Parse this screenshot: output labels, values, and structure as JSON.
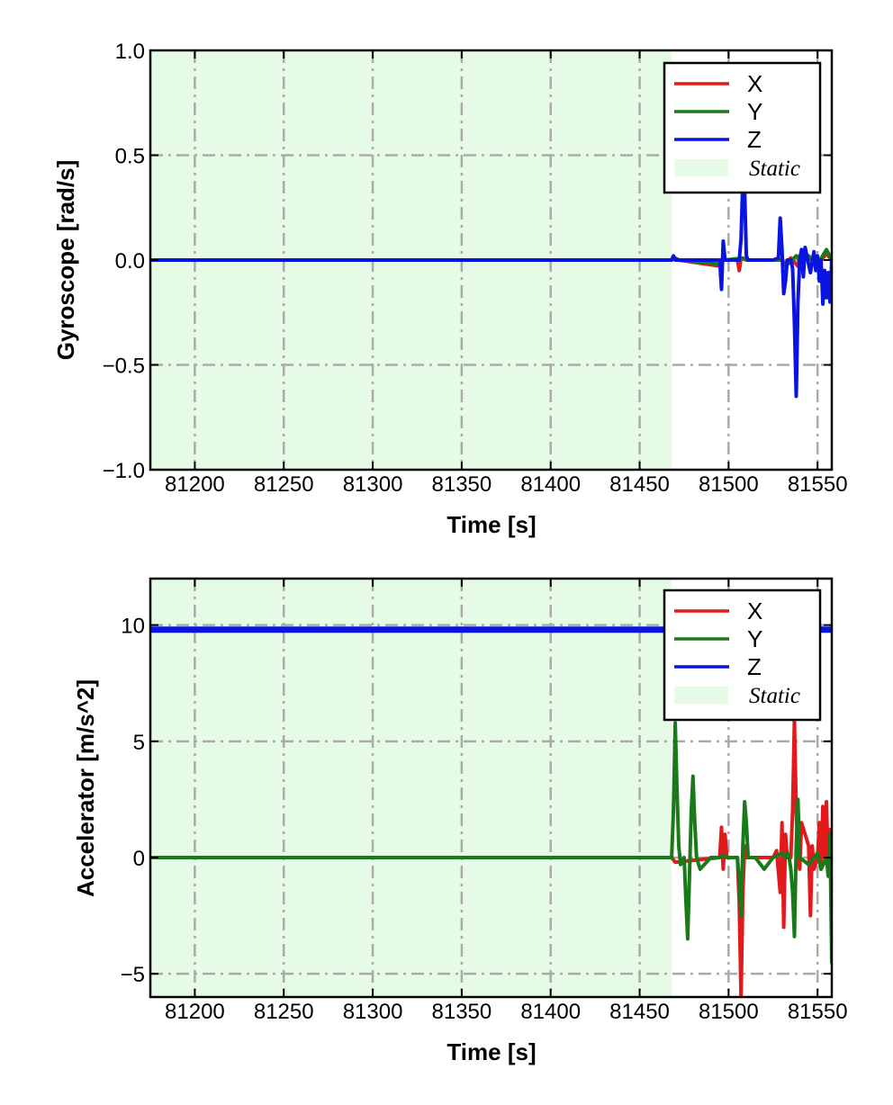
{
  "chart_data": [
    {
      "type": "line",
      "xlabel": "Time [s]",
      "ylabel": "Gyroscope [rad/s]",
      "xlim": [
        81175,
        81558
      ],
      "ylim": [
        -1.0,
        1.0
      ],
      "xticks": [
        81200,
        81250,
        81300,
        81350,
        81400,
        81450,
        81500,
        81550
      ],
      "xtick_labels": [
        "81200",
        "81250",
        "81300",
        "81350",
        "81400",
        "81450",
        "81500",
        "81550"
      ],
      "yticks": [
        1.0,
        0.5,
        0.0,
        -0.5,
        -1.0
      ],
      "ytick_labels": [
        "1.0",
        "0.5",
        "0.0",
        "−0.5",
        "−1.0"
      ],
      "grid": true,
      "legend_position": "top-right",
      "static_region": {
        "label": "Static",
        "x": [
          81175,
          81468
        ],
        "color": "#e6fbe6"
      },
      "series": [
        {
          "name": "X",
          "color": "#e31a1c",
          "x": [
            81175,
            81468,
            81470,
            81472,
            81496,
            81497,
            81498,
            81505,
            81506,
            81507,
            81510,
            81530,
            81531,
            81535,
            81539,
            81540,
            81545,
            81550,
            81555,
            81558
          ],
          "y": [
            0.0,
            0.0,
            0.01,
            0.0,
            -0.03,
            0.02,
            0.0,
            0.0,
            -0.05,
            0.01,
            0.0,
            0.0,
            -0.02,
            0.01,
            -0.03,
            0.02,
            0.01,
            -0.02,
            0.03,
            0.0
          ]
        },
        {
          "name": "Y",
          "color": "#1a7a1a",
          "x": [
            81175,
            81468,
            81470,
            81472,
            81496,
            81497,
            81498,
            81508,
            81510,
            81530,
            81532,
            81538,
            81540,
            81545,
            81550,
            81555,
            81558
          ],
          "y": [
            0.0,
            0.0,
            0.01,
            0.0,
            -0.02,
            0.02,
            0.0,
            0.01,
            0.0,
            0.0,
            -0.03,
            0.02,
            0.0,
            0.02,
            -0.02,
            0.05,
            0.0
          ]
        },
        {
          "name": "Z",
          "color": "#0a14e0",
          "x": [
            81175,
            81468,
            81469,
            81470,
            81471,
            81495,
            81496,
            81497,
            81498,
            81499,
            81506,
            81507,
            81508,
            81509,
            81510,
            81511,
            81512,
            81525,
            81528,
            81529,
            81530,
            81531,
            81532,
            81533,
            81535,
            81536,
            81537,
            81538,
            81539,
            81540,
            81541,
            81542,
            81543,
            81544,
            81546,
            81548,
            81549,
            81550,
            81551,
            81552,
            81553,
            81554,
            81555,
            81556,
            81557,
            81558
          ],
          "y": [
            0.0,
            0.0,
            0.02,
            0.0,
            0.0,
            0.0,
            -0.14,
            0.09,
            0.0,
            0.0,
            0.0,
            0.1,
            0.38,
            0.33,
            0.02,
            0.0,
            0.0,
            0.0,
            0.01,
            0.2,
            0.05,
            -0.16,
            -0.1,
            0.0,
            0.0,
            -0.04,
            -0.3,
            -0.65,
            -0.2,
            0.0,
            0.05,
            -0.08,
            0.06,
            0.02,
            -0.06,
            0.04,
            -0.05,
            0.02,
            -0.1,
            0.0,
            -0.21,
            -0.05,
            -0.18,
            -0.06,
            -0.2,
            0.0
          ]
        }
      ]
    },
    {
      "type": "line",
      "xlabel": "Time [s]",
      "ylabel": "Accelerator [m/s^2]",
      "xlim": [
        81175,
        81558
      ],
      "ylim": [
        -6,
        12
      ],
      "xticks": [
        81200,
        81250,
        81300,
        81350,
        81400,
        81450,
        81500,
        81550
      ],
      "xtick_labels": [
        "81200",
        "81250",
        "81300",
        "81350",
        "81400",
        "81450",
        "81500",
        "81550"
      ],
      "yticks": [
        10,
        5,
        0,
        -5
      ],
      "ytick_labels": [
        "10",
        "5",
        "0",
        "−5"
      ],
      "grid": true,
      "legend_position": "top-right",
      "static_region": {
        "label": "Static",
        "x": [
          81175,
          81468
        ],
        "color": "#e6fbe6"
      },
      "series": [
        {
          "name": "X",
          "color": "#e31a1c",
          "x": [
            81175,
            81468,
            81470,
            81495,
            81496,
            81497,
            81498,
            81499,
            81505,
            81506,
            81507,
            81508,
            81509,
            81510,
            81512,
            81525,
            81527,
            81529,
            81530,
            81531,
            81532,
            81533,
            81535,
            81536,
            81537,
            81538,
            81539,
            81540,
            81541,
            81545,
            81546,
            81547,
            81548,
            81550,
            81551,
            81552,
            81553,
            81554,
            81555,
            81556,
            81557,
            81558
          ],
          "y": [
            0.0,
            0.0,
            -0.2,
            0.0,
            1.3,
            -0.5,
            1.0,
            0.0,
            0.0,
            -2.0,
            -6.0,
            -1.5,
            0.5,
            0.0,
            0.0,
            0.0,
            0.3,
            -1.5,
            1.5,
            -3.0,
            1.0,
            0.0,
            0.0,
            2.0,
            5.9,
            2.0,
            0.0,
            -0.5,
            1.5,
            0.5,
            -2.5,
            0.5,
            -0.5,
            0.0,
            1.5,
            -0.5,
            2.2,
            0.0,
            2.4,
            -0.5,
            1.2,
            0.0
          ]
        },
        {
          "name": "Y",
          "color": "#1a7a1a",
          "x": [
            81175,
            81468,
            81469,
            81470,
            81471,
            81472,
            81473,
            81475,
            81476,
            81477,
            81478,
            81479,
            81480,
            81481,
            81482,
            81484,
            81490,
            81495,
            81497,
            81500,
            81505,
            81506,
            81507,
            81508,
            81509,
            81510,
            81511,
            81515,
            81520,
            81525,
            81530,
            81532,
            81533,
            81534,
            81535,
            81536,
            81537,
            81538,
            81539,
            81540,
            81545,
            81550,
            81552,
            81555,
            81556,
            81557,
            81558
          ],
          "y": [
            0.0,
            0.0,
            2.0,
            5.8,
            3.0,
            0.5,
            -0.3,
            0.0,
            -1.8,
            -3.5,
            -0.8,
            2.0,
            3.5,
            1.5,
            0.0,
            -0.5,
            0.0,
            0.0,
            0.1,
            0.0,
            0.0,
            -1.0,
            -2.5,
            0.5,
            2.4,
            1.5,
            0.0,
            0.0,
            -0.5,
            0.0,
            0.2,
            0.0,
            0.2,
            0.0,
            -0.5,
            -1.5,
            -3.4,
            0.5,
            2.5,
            0.0,
            -0.3,
            0.2,
            -0.5,
            0.0,
            -0.8,
            1.0,
            -4.5
          ]
        },
        {
          "name": "Z",
          "color": "#0a14e0",
          "x": [
            81175,
            81558
          ],
          "y": [
            9.8,
            9.8
          ]
        }
      ]
    }
  ],
  "legend": {
    "items": [
      {
        "label": "X",
        "color": "#e31a1c",
        "kind": "line"
      },
      {
        "label": "Y",
        "color": "#1a7a1a",
        "kind": "line"
      },
      {
        "label": "Z",
        "color": "#0a14e0",
        "kind": "line"
      },
      {
        "label": "Static",
        "color": "#e6fbe6",
        "kind": "patch"
      }
    ]
  }
}
